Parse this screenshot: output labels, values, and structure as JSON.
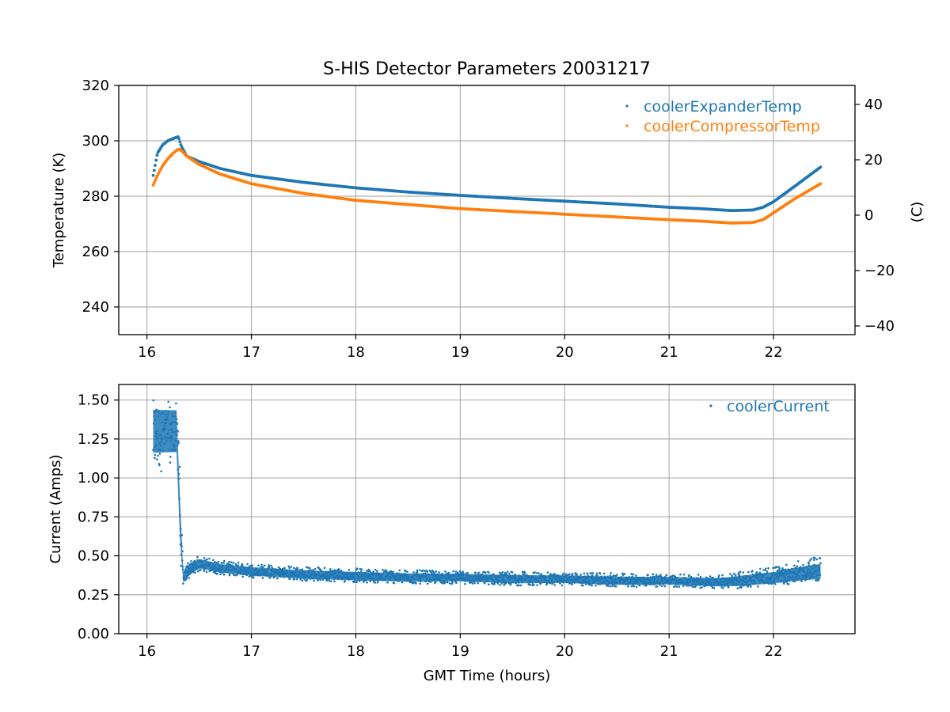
{
  "title": "S-HIS Detector Parameters 20031217",
  "colors": {
    "blue": "#1f77b4",
    "orange": "#ff7f0e"
  },
  "chart_data": [
    {
      "type": "scatter",
      "title": "S-HIS Detector Parameters 20031217",
      "xlabel": "",
      "ylabel": "Temperature (K)",
      "y2label": "(C)",
      "xlim": [
        15.73,
        22.78
      ],
      "ylim": [
        230,
        320
      ],
      "y2lim": [
        -43.15,
        46.85
      ],
      "xticks": [
        "16",
        "17",
        "18",
        "19",
        "20",
        "21",
        "22"
      ],
      "yticks": [
        "240",
        "260",
        "280",
        "300",
        "320"
      ],
      "y2ticks": [
        "−40",
        "−20",
        "0",
        "20",
        "40"
      ],
      "grid": true,
      "legend_position": "top-right",
      "series": [
        {
          "name": "coolerExpanderTemp",
          "color": "#1f77b4",
          "x": [
            16.06,
            16.1,
            16.15,
            16.2,
            16.25,
            16.3,
            16.33,
            16.38,
            16.5,
            16.7,
            17.0,
            17.5,
            18.0,
            18.5,
            19.0,
            19.5,
            20.0,
            20.5,
            21.0,
            21.3,
            21.6,
            21.8,
            21.9,
            22.0,
            22.2,
            22.45
          ],
          "y": [
            287.5,
            295.5,
            298.5,
            300.0,
            300.8,
            301.5,
            298.0,
            294.5,
            292.5,
            290.0,
            287.5,
            285.0,
            283.0,
            281.5,
            280.3,
            279.2,
            278.2,
            277.2,
            276.0,
            275.5,
            274.8,
            275.0,
            276.0,
            278.0,
            283.5,
            290.5
          ]
        },
        {
          "name": "coolerCompressorTemp",
          "color": "#ff7f0e",
          "x": [
            16.06,
            16.1,
            16.15,
            16.2,
            16.25,
            16.3,
            16.33,
            16.38,
            16.5,
            16.7,
            17.0,
            17.5,
            18.0,
            18.5,
            19.0,
            19.5,
            20.0,
            20.5,
            21.0,
            21.3,
            21.6,
            21.8,
            21.9,
            22.0,
            22.2,
            22.45
          ],
          "y": [
            284.0,
            287.5,
            291.0,
            293.5,
            295.5,
            297.0,
            296.5,
            294.5,
            291.5,
            288.0,
            284.5,
            281.0,
            278.5,
            277.0,
            275.5,
            274.5,
            273.5,
            272.5,
            271.5,
            271.0,
            270.3,
            270.5,
            271.5,
            274.0,
            279.0,
            284.5
          ]
        }
      ]
    },
    {
      "type": "scatter",
      "title": "",
      "xlabel": "GMT Time (hours)",
      "ylabel": "Current (Amps)",
      "xlim": [
        15.73,
        22.78
      ],
      "ylim": [
        0,
        1.6
      ],
      "xticks": [
        "16",
        "17",
        "18",
        "19",
        "20",
        "21",
        "22"
      ],
      "yticks": [
        "0.00",
        "0.25",
        "0.50",
        "0.75",
        "1.00",
        "1.25",
        "1.50"
      ],
      "grid": true,
      "legend_position": "top-right",
      "series": [
        {
          "name": "coolerCurrent",
          "color": "#1f77b4",
          "x": [
            16.06,
            16.2,
            16.3,
            16.32,
            16.35,
            16.38,
            16.5,
            16.7,
            17.0,
            17.5,
            18.0,
            18.5,
            19.0,
            19.5,
            20.0,
            20.5,
            21.0,
            21.5,
            21.7,
            22.0,
            22.2,
            22.45
          ],
          "y_low": [
            1.04,
            1.04,
            1.04,
            0.45,
            0.3,
            0.33,
            0.4,
            0.38,
            0.36,
            0.34,
            0.33,
            0.32,
            0.32,
            0.31,
            0.31,
            0.3,
            0.3,
            0.29,
            0.29,
            0.31,
            0.32,
            0.34
          ],
          "y_high": [
            1.5,
            1.49,
            1.49,
            0.9,
            0.38,
            0.46,
            0.5,
            0.47,
            0.45,
            0.43,
            0.42,
            0.41,
            0.4,
            0.4,
            0.39,
            0.39,
            0.38,
            0.38,
            0.4,
            0.43,
            0.46,
            0.5
          ],
          "y_center": [
            1.3,
            1.3,
            1.3,
            0.6,
            0.34,
            0.4,
            0.45,
            0.42,
            0.4,
            0.38,
            0.37,
            0.36,
            0.36,
            0.35,
            0.35,
            0.34,
            0.34,
            0.33,
            0.34,
            0.36,
            0.38,
            0.4
          ]
        }
      ]
    }
  ]
}
